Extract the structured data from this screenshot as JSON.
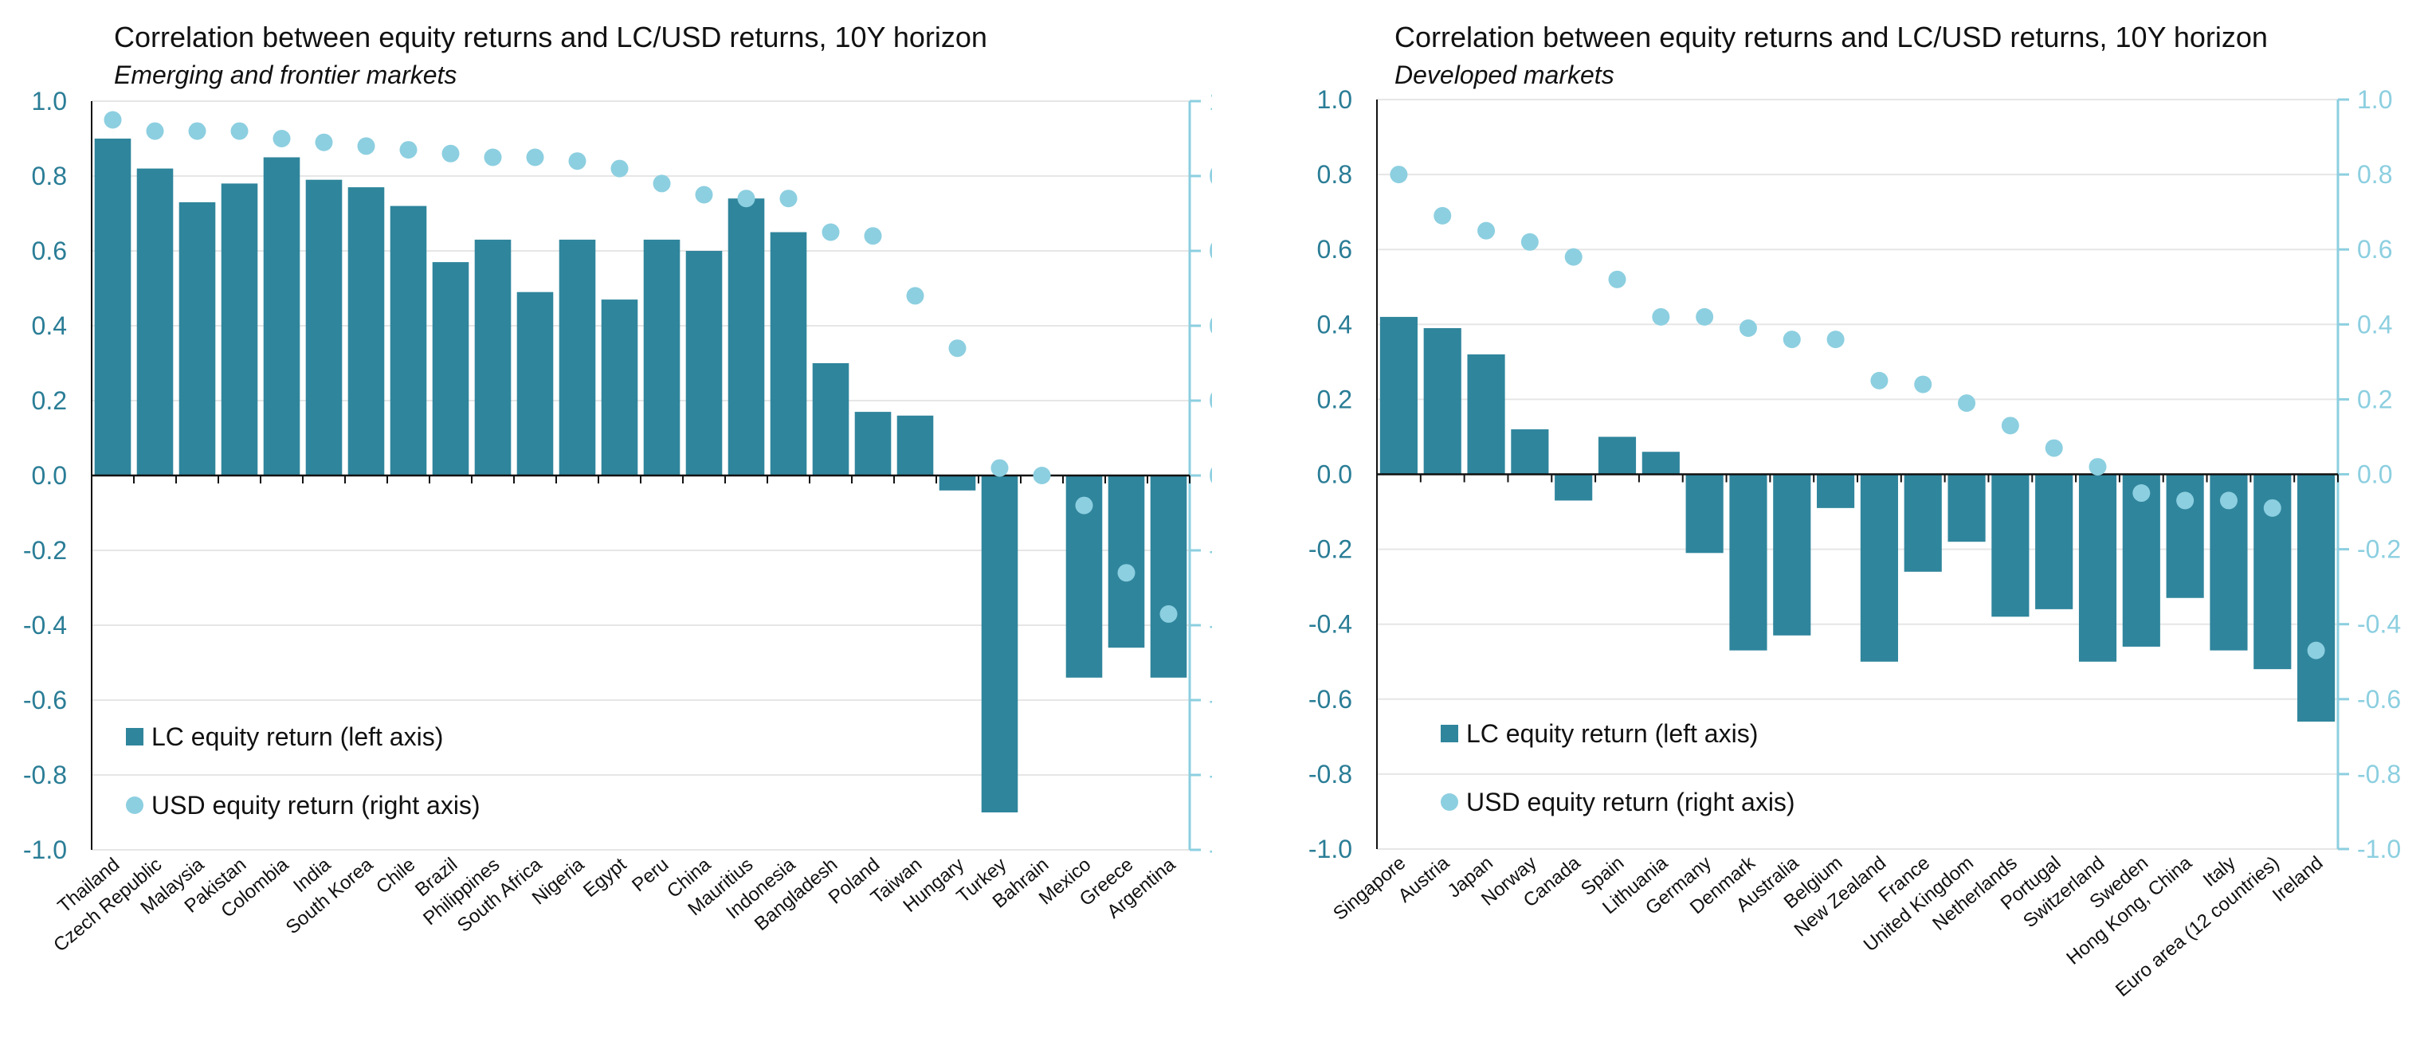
{
  "colors": {
    "bar": "#2f859c",
    "dot": "#8ccfe0",
    "left_axis_text": "#2a7d96",
    "right_axis": "#8ccfe0",
    "grid": "#e6e6e6",
    "zero_line": "#111111",
    "category_text": "#111111"
  },
  "chart_data": [
    {
      "type": "bar",
      "title": "Correlation between equity returns and LC/USD returns, 10Y horizon",
      "subtitle": "Emerging and frontier markets",
      "categories": [
        "Thailand",
        "Czech Republic",
        "Malaysia",
        "Pakistan",
        "Colombia",
        "India",
        "South Korea",
        "Chile",
        "Brazil",
        "Philippines",
        "South Africa",
        "Nigeria",
        "Egypt",
        "Peru",
        "China",
        "Mauritius",
        "Indonesia",
        "Bangladesh",
        "Poland",
        "Taiwan",
        "Hungary",
        "Turkey",
        "Bahrain",
        "Mexico",
        "Greece",
        "Argentina"
      ],
      "series": [
        {
          "name": "LC equity return (left axis)",
          "type": "bar",
          "axis": "left",
          "values": [
            0.9,
            0.82,
            0.73,
            0.78,
            0.85,
            0.79,
            0.77,
            0.72,
            0.57,
            0.63,
            0.49,
            0.63,
            0.47,
            0.63,
            0.6,
            0.74,
            0.65,
            0.3,
            0.17,
            0.16,
            -0.04,
            -0.9,
            0.0,
            -0.54,
            -0.46,
            -0.54
          ]
        },
        {
          "name": "USD equity return (right axis)",
          "type": "scatter",
          "axis": "right",
          "values": [
            0.95,
            0.92,
            0.92,
            0.92,
            0.9,
            0.89,
            0.88,
            0.87,
            0.86,
            0.85,
            0.85,
            0.84,
            0.82,
            0.78,
            0.75,
            0.74,
            0.74,
            0.65,
            0.64,
            0.48,
            0.34,
            0.02,
            0.0,
            -0.08,
            -0.26,
            -0.37
          ]
        }
      ],
      "ylim_left": [
        -1.0,
        1.0
      ],
      "ylim_right": [
        -1.0,
        1.0
      ],
      "yticks": [
        "1.0",
        "0.8",
        "0.6",
        "0.4",
        "0.2",
        "0.0",
        "-0.2",
        "-0.4",
        "-0.6",
        "-0.8",
        "-1.0"
      ],
      "legend_position": "bottom-left",
      "grid": true
    },
    {
      "type": "bar",
      "title": "Correlation between equity returns and LC/USD returns, 10Y horizon",
      "subtitle": "Developed markets",
      "categories": [
        "Singapore",
        "Austria",
        "Japan",
        "Norway",
        "Canada",
        "Spain",
        "Lithuania",
        "Germany",
        "Denmark",
        "Australia",
        "Belgium",
        "New Zealand",
        "France",
        "United Kingdom",
        "Netherlands",
        "Portugal",
        "Switzerland",
        "Sweden",
        "Hong Kong, China",
        "Italy",
        "Euro area (12 countries)",
        "Ireland"
      ],
      "series": [
        {
          "name": "LC equity return (left axis)",
          "type": "bar",
          "axis": "left",
          "values": [
            0.42,
            0.39,
            0.32,
            0.12,
            -0.07,
            0.1,
            0.06,
            -0.21,
            -0.47,
            -0.43,
            -0.09,
            -0.5,
            -0.26,
            -0.18,
            -0.38,
            -0.36,
            -0.5,
            -0.46,
            -0.33,
            -0.47,
            -0.52,
            -0.66
          ]
        },
        {
          "name": "USD equity return (right axis)",
          "type": "scatter",
          "axis": "right",
          "values": [
            0.8,
            0.69,
            0.65,
            0.62,
            0.58,
            0.52,
            0.42,
            0.42,
            0.39,
            0.36,
            0.36,
            0.25,
            0.24,
            0.19,
            0.13,
            0.07,
            0.02,
            -0.05,
            -0.07,
            -0.07,
            -0.09,
            -0.47
          ]
        }
      ],
      "ylim_left": [
        -1.0,
        1.0
      ],
      "ylim_right": [
        -1.0,
        1.0
      ],
      "yticks": [
        "1.0",
        "0.8",
        "0.6",
        "0.4",
        "0.2",
        "0.0",
        "-0.2",
        "-0.4",
        "-0.6",
        "-0.8",
        "-1.0"
      ],
      "legend_position": "bottom-left",
      "grid": true
    }
  ]
}
